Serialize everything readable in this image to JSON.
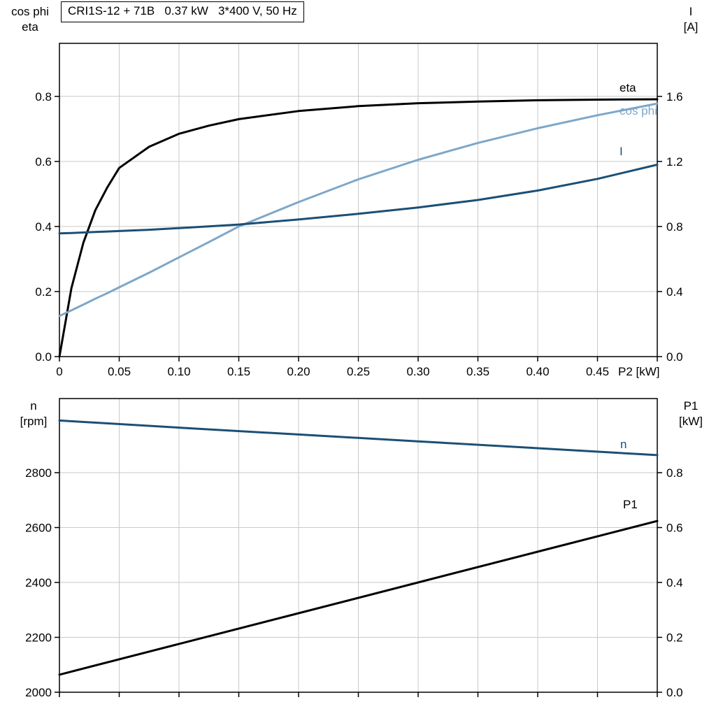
{
  "title_box": {
    "text": "CRI1S-12 + 71B   0.37 kW   3*400 V, 50 Hz"
  },
  "colors": {
    "black": "#000000",
    "light_blue": "#7da7c9",
    "dark_blue": "#1b4f76",
    "grid": "#c9c9c9",
    "frame": "#000000",
    "background": "#ffffff"
  },
  "chart_data": [
    {
      "type": "line",
      "panel": "top",
      "title": "CRI1S-12 + 71B   0.37 kW   3*400 V, 50 Hz",
      "xlabel": "P2 [kW]",
      "xlim": [
        0,
        0.5
      ],
      "grid_x": [
        0.05,
        0.1,
        0.15,
        0.2,
        0.25,
        0.3,
        0.35,
        0.4,
        0.45
      ],
      "x_ticks": [
        {
          "v": 0,
          "t": "0"
        },
        {
          "v": 0.05,
          "t": "0.05"
        },
        {
          "v": 0.1,
          "t": "0.10"
        },
        {
          "v": 0.15,
          "t": "0.15"
        },
        {
          "v": 0.2,
          "t": "0.20"
        },
        {
          "v": 0.25,
          "t": "0.25"
        },
        {
          "v": 0.3,
          "t": "0.30"
        },
        {
          "v": 0.35,
          "t": "0.35"
        },
        {
          "v": 0.4,
          "t": "0.40"
        },
        {
          "v": 0.45,
          "t": "0.45"
        }
      ],
      "left_axis": {
        "title_lines": [
          "cos phi",
          "eta"
        ],
        "range": [
          0,
          0.963
        ],
        "ticks": [
          {
            "v": 0,
            "t": "0.0"
          },
          {
            "v": 0.2,
            "t": "0.2"
          },
          {
            "v": 0.4,
            "t": "0.4"
          },
          {
            "v": 0.6,
            "t": "0.6"
          },
          {
            "v": 0.8,
            "t": "0.8"
          }
        ]
      },
      "right_axis": {
        "title_lines": [
          "I",
          "[A]"
        ],
        "range": [
          0,
          1.926
        ],
        "ticks": [
          {
            "v": 0,
            "t": "0.0"
          },
          {
            "v": 0.4,
            "t": "0.4"
          },
          {
            "v": 0.8,
            "t": "0.8"
          },
          {
            "v": 1.2,
            "t": "1.2"
          },
          {
            "v": 1.6,
            "t": "1.6"
          }
        ]
      },
      "x": [
        0,
        0.01,
        0.02,
        0.03,
        0.04,
        0.05,
        0.075,
        0.1,
        0.125,
        0.15,
        0.2,
        0.25,
        0.3,
        0.35,
        0.4,
        0.45,
        0.5
      ],
      "series": [
        {
          "name": "eta",
          "label": "eta",
          "axis": "left",
          "color_key": "black",
          "values": [
            0,
            0.21,
            0.35,
            0.45,
            0.52,
            0.58,
            0.645,
            0.685,
            0.71,
            0.73,
            0.755,
            0.77,
            0.779,
            0.784,
            0.788,
            0.79,
            0.791
          ]
        },
        {
          "name": "cos_phi",
          "label": "cos phi",
          "axis": "left",
          "color_key": "light_blue",
          "values": [
            0.125,
            0.142,
            0.16,
            0.178,
            0.195,
            0.213,
            0.258,
            0.305,
            0.352,
            0.4,
            0.475,
            0.545,
            0.605,
            0.657,
            0.702,
            0.742,
            0.778
          ]
        },
        {
          "name": "I",
          "label": "I",
          "axis": "right",
          "color_key": "dark_blue",
          "values": [
            0.758,
            0.76,
            0.763,
            0.766,
            0.769,
            0.772,
            0.78,
            0.79,
            0.801,
            0.812,
            0.843,
            0.878,
            0.917,
            0.963,
            1.021,
            1.093,
            1.18
          ]
        }
      ]
    },
    {
      "type": "line",
      "panel": "bottom",
      "xlabel": "",
      "xlim": [
        0,
        0.5
      ],
      "grid_x": [
        0.05,
        0.1,
        0.15,
        0.2,
        0.25,
        0.3,
        0.35,
        0.4,
        0.45
      ],
      "x_ticks": [],
      "left_axis": {
        "title_lines": [
          "n",
          "[rpm]"
        ],
        "range": [
          2000,
          3070
        ],
        "ticks": [
          {
            "v": 2000,
            "t": "2000"
          },
          {
            "v": 2200,
            "t": "2200"
          },
          {
            "v": 2400,
            "t": "2400"
          },
          {
            "v": 2600,
            "t": "2600"
          },
          {
            "v": 2800,
            "t": "2800"
          }
        ]
      },
      "right_axis": {
        "title_lines": [
          "P1",
          "[kW]"
        ],
        "range": [
          0,
          1.07
        ],
        "ticks": [
          {
            "v": 0,
            "t": "0.0"
          },
          {
            "v": 0.2,
            "t": "0.2"
          },
          {
            "v": 0.4,
            "t": "0.4"
          },
          {
            "v": 0.6,
            "t": "0.6"
          },
          {
            "v": 0.8,
            "t": "0.8"
          }
        ]
      },
      "x": [
        0,
        0.1,
        0.2,
        0.3,
        0.4,
        0.5
      ],
      "series": [
        {
          "name": "n",
          "label": "n",
          "axis": "left",
          "color_key": "dark_blue",
          "values": [
            2990,
            2964,
            2939,
            2914,
            2889,
            2864
          ]
        },
        {
          "name": "P1",
          "label": "P1",
          "axis": "right",
          "color_key": "black",
          "values": [
            0.064,
            0.176,
            0.288,
            0.4,
            0.512,
            0.624
          ]
        }
      ]
    }
  ]
}
